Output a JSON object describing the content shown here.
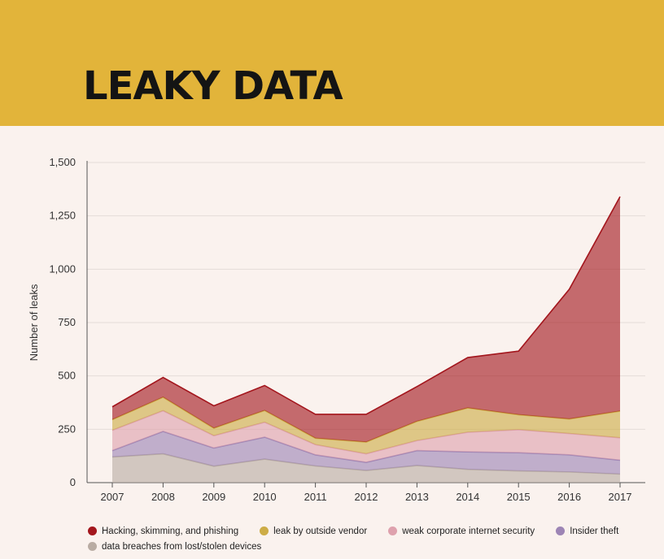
{
  "header": {
    "title": "LEAKY DATA"
  },
  "chart_data": {
    "type": "area",
    "stacked": true,
    "title": "LEAKY DATA",
    "xlabel": "",
    "ylabel": "Number of leaks",
    "x": [
      "2007",
      "2008",
      "2009",
      "2010",
      "2011",
      "2012",
      "2013",
      "2014",
      "2015",
      "2016",
      "2017"
    ],
    "ylim": [
      0,
      1500
    ],
    "yticks": [
      0,
      250,
      500,
      750,
      1000,
      1250,
      1500
    ],
    "ytick_labels": [
      "0",
      "250",
      "500",
      "750",
      "1,000",
      "1,250",
      "1,500"
    ],
    "grid": true,
    "legend_position": "bottom",
    "series": [
      {
        "name": "data breaches from lost/stolen devices",
        "color": "#b9aca3",
        "values": [
          120,
          135,
          77,
          110,
          78,
          57,
          80,
          62,
          55,
          50,
          40
        ]
      },
      {
        "name": "Insider theft",
        "color": "#9d85b5",
        "values": [
          30,
          105,
          85,
          103,
          52,
          38,
          70,
          82,
          85,
          80,
          65
        ]
      },
      {
        "name": "weak corporate internet security",
        "color": "#dea1ad",
        "values": [
          95,
          97,
          58,
          70,
          48,
          40,
          47,
          92,
          108,
          100,
          105
        ]
      },
      {
        "name": "leak by outside vendor",
        "color": "#cdac46",
        "values": [
          50,
          63,
          35,
          55,
          30,
          55,
          90,
          114,
          70,
          68,
          125
        ]
      },
      {
        "name": "Hacking, skimming, and phishing",
        "color": "#a3161d",
        "values": [
          60,
          93,
          105,
          117,
          112,
          130,
          163,
          236,
          298,
          608,
          1005
        ]
      }
    ],
    "legend_order": [
      "Hacking, skimming, and phishing",
      "leak by outside vendor",
      "weak corporate internet security",
      "Insider theft",
      "data breaches from lost/stolen devices"
    ]
  }
}
